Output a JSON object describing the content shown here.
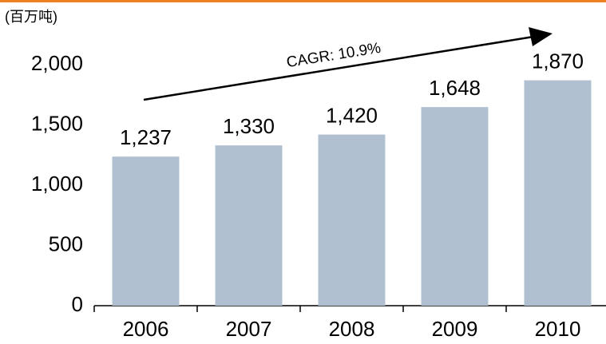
{
  "chart_data": {
    "type": "bar",
    "y_axis_label": "(百万吨)",
    "annotation": "CAGR: 10.9%",
    "categories": [
      "2006",
      "2007",
      "2008",
      "2009",
      "2010"
    ],
    "values": [
      1237,
      1330,
      1420,
      1648,
      1870
    ],
    "value_labels": [
      "1,237",
      "1,330",
      "1,420",
      "1,648",
      "1,870"
    ],
    "color": "#b0c0d0",
    "ylim": [
      0,
      2000
    ],
    "yticks": [
      0,
      500,
      {
        "value": 1000,
        "label": "1,000"
      },
      {
        "value": 1500,
        "label": "1,500"
      },
      {
        "value": 2000,
        "label": "2,000"
      }
    ],
    "grid": false
  }
}
